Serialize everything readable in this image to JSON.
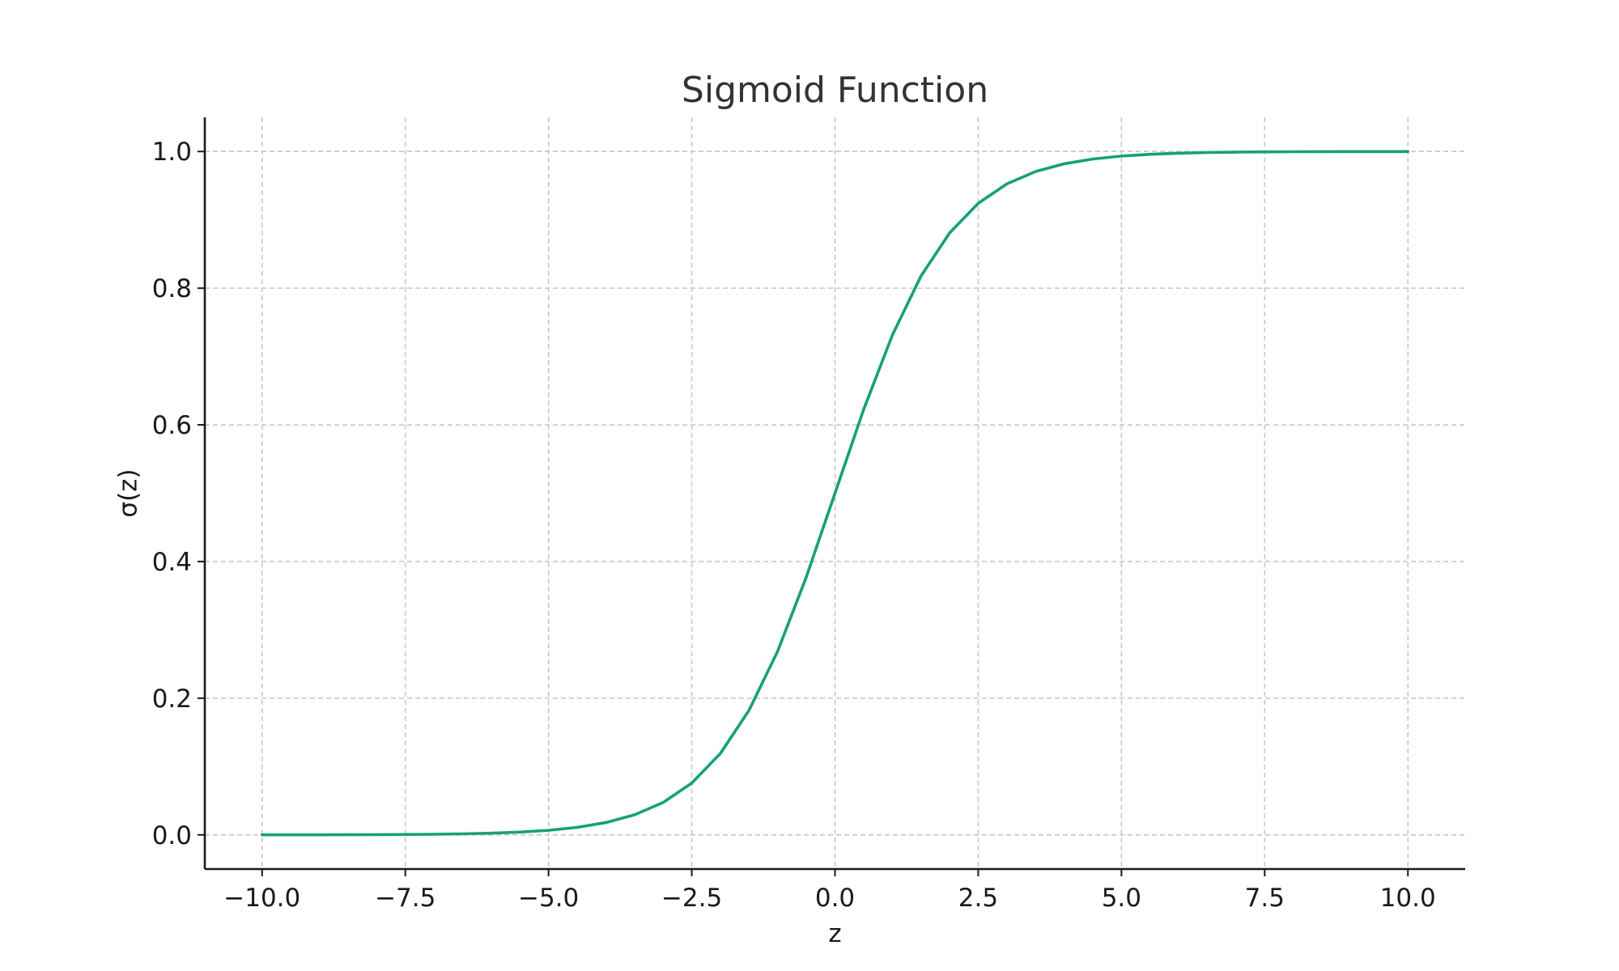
{
  "chart_data": {
    "type": "line",
    "title": "Sigmoid Function",
    "xlabel": "z",
    "ylabel": "σ(z)",
    "xlim": [
      -11,
      11
    ],
    "ylim": [
      -0.05,
      1.05
    ],
    "xticks": [
      -10.0,
      -7.5,
      -5.0,
      -2.5,
      0.0,
      2.5,
      5.0,
      7.5,
      10.0
    ],
    "xtick_labels": [
      "−10.0",
      "−7.5",
      "−5.0",
      "−2.5",
      "0.0",
      "2.5",
      "5.0",
      "7.5",
      "10.0"
    ],
    "yticks": [
      0.0,
      0.2,
      0.4,
      0.6,
      0.8,
      1.0
    ],
    "ytick_labels": [
      "0.0",
      "0.2",
      "0.4",
      "0.6",
      "0.8",
      "1.0"
    ],
    "grid": true,
    "grid_style": "dashed",
    "line_color": "#16a07a",
    "grid_color": "#c8c8c8",
    "axis_color": "#1a1a1a",
    "series": [
      {
        "x": [
          -10,
          -9.5,
          -9,
          -8.5,
          -8,
          -7.5,
          -7,
          -6.5,
          -6,
          -5.5,
          -5,
          -4.5,
          -4,
          -3.5,
          -3,
          -2.5,
          -2,
          -1.5,
          -1,
          -0.5,
          0,
          0.5,
          1,
          1.5,
          2,
          2.5,
          3,
          3.5,
          4,
          4.5,
          5,
          5.5,
          6,
          6.5,
          7,
          7.5,
          8,
          8.5,
          9,
          9.5,
          10
        ],
        "y": [
          5e-05,
          7e-05,
          0.00012,
          0.0002,
          0.00034,
          0.00055,
          0.00091,
          0.0015,
          0.00247,
          0.00407,
          0.00669,
          0.01099,
          0.01799,
          0.02931,
          0.04743,
          0.07586,
          0.1192,
          0.18243,
          0.26894,
          0.37754,
          0.5,
          0.62246,
          0.73106,
          0.81757,
          0.8808,
          0.92414,
          0.95257,
          0.97069,
          0.98201,
          0.98901,
          0.99331,
          0.99593,
          0.99753,
          0.9985,
          0.99909,
          0.99945,
          0.99966,
          0.9998,
          0.99988,
          0.99993,
          0.99995
        ]
      }
    ]
  }
}
